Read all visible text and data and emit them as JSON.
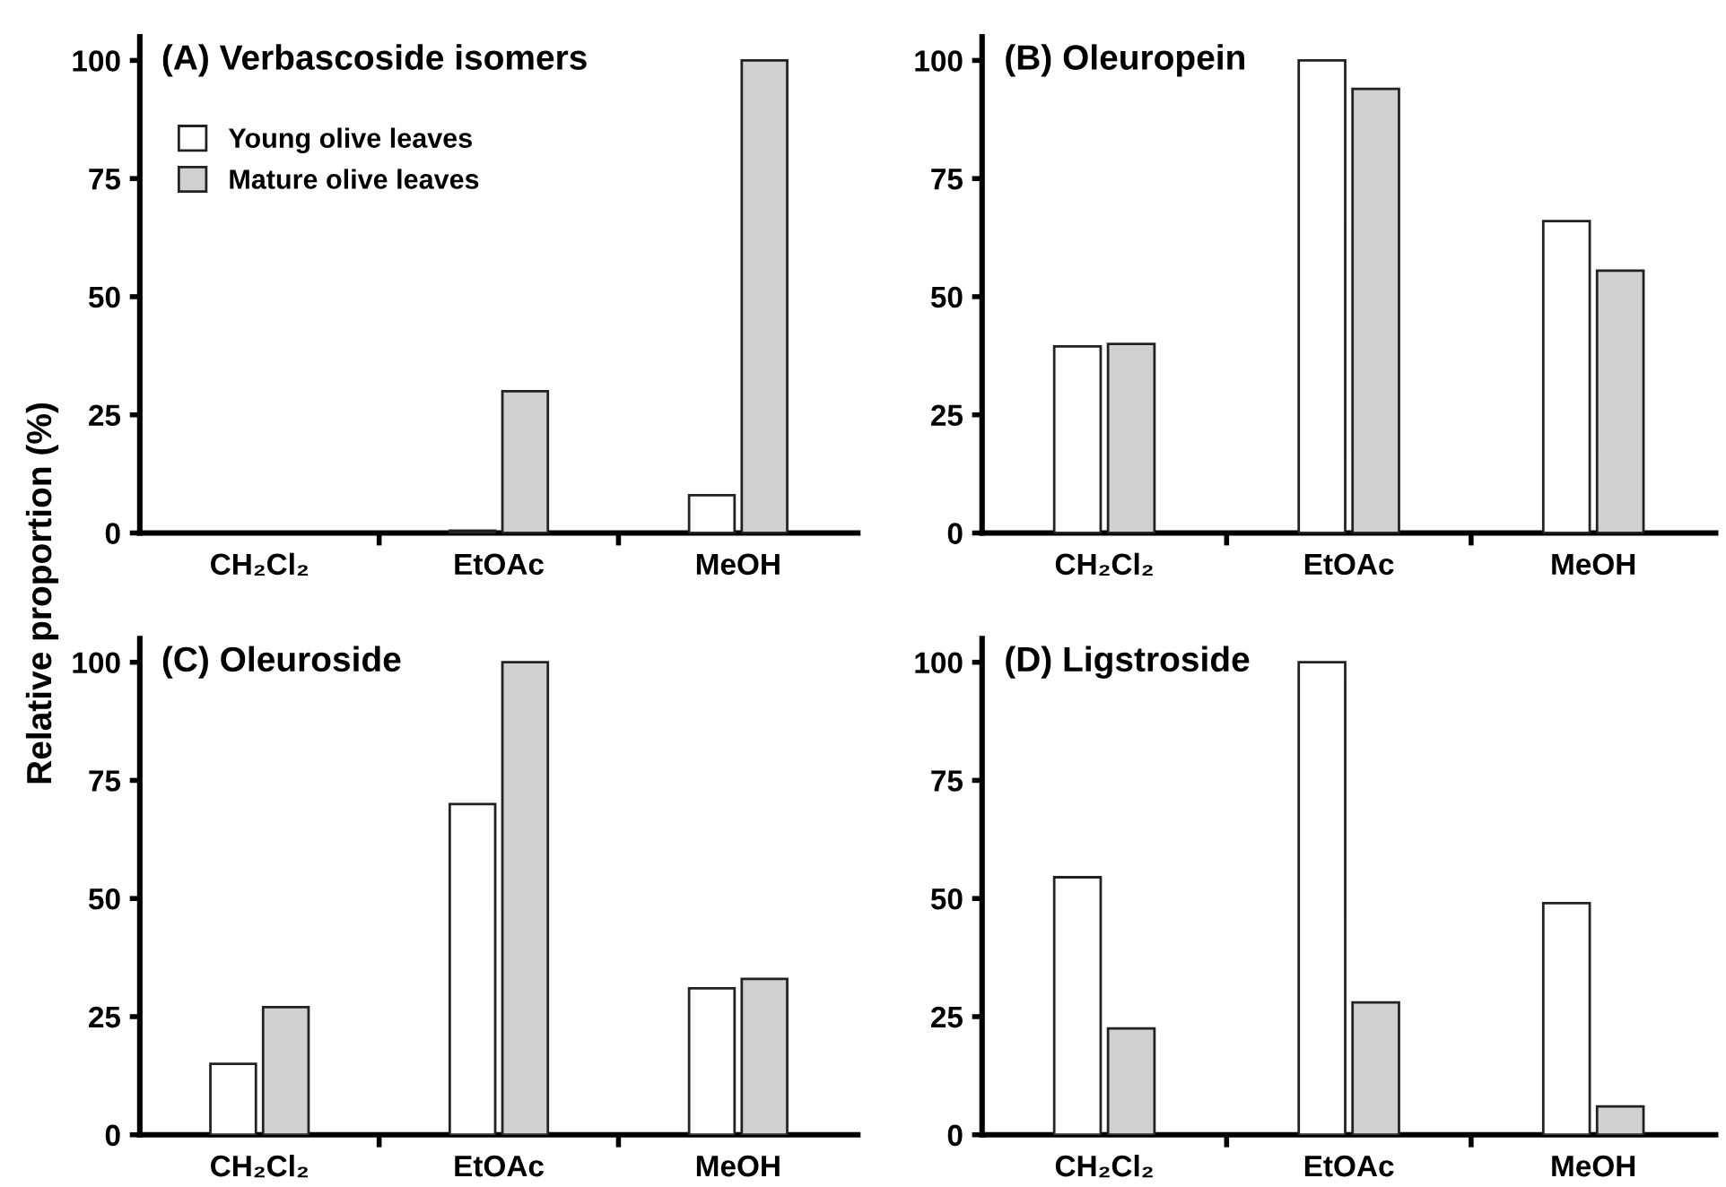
{
  "chart_data": [
    {
      "type": "bar",
      "title": "(A) Verbascoside isomers",
      "ylabel": "Relative proportion (%)",
      "categories": [
        "CH₂Cl₂",
        "EtOAc",
        "MeOH"
      ],
      "ylim": [
        0,
        105
      ],
      "yticks": [
        0,
        25,
        50,
        75,
        100
      ],
      "grid": false,
      "legend": "top left",
      "series": [
        {
          "name": "Young olive leaves",
          "color": "#ffffff",
          "values": [
            null,
            0.5,
            8
          ]
        },
        {
          "name": "Mature olive leaves",
          "color": "#d0d0d0",
          "values": [
            null,
            30,
            100
          ]
        }
      ]
    },
    {
      "type": "bar",
      "title": "(B) Oleuropein",
      "categories": [
        "CH₂Cl₂",
        "EtOAc",
        "MeOH"
      ],
      "ylim": [
        0,
        105
      ],
      "yticks": [
        0,
        25,
        50,
        75,
        100
      ],
      "grid": false,
      "series": [
        {
          "color": "#ffffff",
          "values": [
            39.5,
            100,
            66
          ]
        },
        {
          "color": "#d0d0d0",
          "values": [
            40,
            94,
            55.5
          ]
        }
      ]
    },
    {
      "type": "bar",
      "title": "(C) Oleuroside",
      "categories": [
        "CH₂Cl₂",
        "EtOAc",
        "MeOH"
      ],
      "ylim": [
        0,
        105
      ],
      "yticks": [
        0,
        25,
        50,
        75,
        100
      ],
      "grid": false,
      "series": [
        {
          "color": "#ffffff",
          "values": [
            15,
            70,
            31
          ]
        },
        {
          "color": "#d0d0d0",
          "values": [
            27,
            100,
            33
          ]
        }
      ]
    },
    {
      "type": "bar",
      "title": "(D) Ligstroside",
      "categories": [
        "CH₂Cl₂",
        "EtOAc",
        "MeOH"
      ],
      "ylim": [
        0,
        105
      ],
      "yticks": [
        0,
        25,
        50,
        75,
        100
      ],
      "grid": false,
      "series": [
        {
          "color": "#ffffff",
          "values": [
            54.5,
            100,
            49
          ]
        },
        {
          "color": "#d0d0d0",
          "values": [
            22.5,
            28,
            6
          ]
        }
      ]
    }
  ]
}
